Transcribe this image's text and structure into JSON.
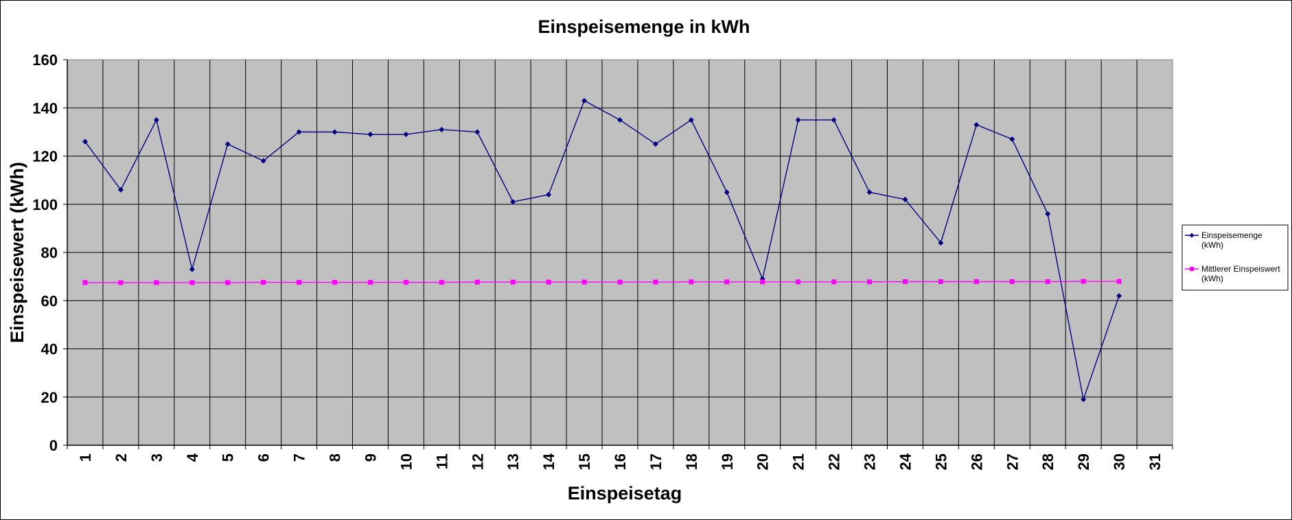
{
  "chart_data": {
    "type": "line",
    "title": "Einspeisemenge in kWh",
    "xlabel": "Einspeisetag",
    "ylabel": "Einspeisewert  (kWh)",
    "ylim": [
      0,
      160
    ],
    "yticks": [
      "0",
      "20",
      "40",
      "60",
      "80",
      "100",
      "120",
      "140",
      "160"
    ],
    "categories": [
      "1",
      "2",
      "3",
      "4",
      "5",
      "6",
      "7",
      "8",
      "9",
      "10",
      "11",
      "12",
      "13",
      "14",
      "15",
      "16",
      "17",
      "18",
      "19",
      "20",
      "21",
      "22",
      "23",
      "24",
      "25",
      "26",
      "27",
      "28",
      "29",
      "30",
      "31"
    ],
    "grid": true,
    "plot_background": "#c0c0c0",
    "legend_position": "right",
    "series": [
      {
        "name": "Einspeisemenge (kWh)",
        "legend_lines": [
          "Einspeisemenge",
          "(kWh)"
        ],
        "color": "#000080",
        "marker": "diamond",
        "values": [
          126,
          106,
          135,
          73,
          125,
          118,
          130,
          130,
          129,
          129,
          131,
          130,
          101,
          104,
          143,
          135,
          125,
          135,
          105,
          69,
          135,
          135,
          105,
          102,
          84,
          133,
          127,
          96,
          19,
          62,
          null
        ]
      },
      {
        "name": "Mittlerer Einspeiswert (kWh)",
        "legend_lines": [
          "Mittlerer Einspeiswert",
          "(kWh)"
        ],
        "color": "#ff00ff",
        "marker": "square",
        "values": [
          67.5,
          67.5,
          67.5,
          67.5,
          67.5,
          67.6,
          67.6,
          67.6,
          67.6,
          67.6,
          67.6,
          67.7,
          67.7,
          67.7,
          67.7,
          67.7,
          67.7,
          67.8,
          67.8,
          67.8,
          67.8,
          67.8,
          67.8,
          67.9,
          67.9,
          67.9,
          67.9,
          67.9,
          68.0,
          68.0,
          null
        ]
      }
    ]
  }
}
